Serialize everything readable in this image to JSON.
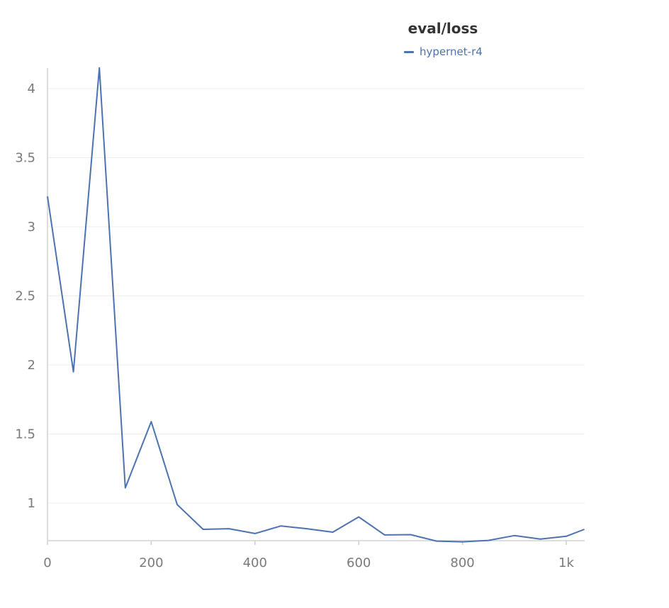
{
  "chart_data": {
    "type": "line",
    "title": "eval/loss",
    "xlabel": "",
    "ylabel": "",
    "xlim": [
      0,
      1035
    ],
    "ylim": [
      0.73,
      4.15
    ],
    "x_ticks": [
      {
        "value": 0,
        "label": "0"
      },
      {
        "value": 200,
        "label": "200"
      },
      {
        "value": 400,
        "label": "400"
      },
      {
        "value": 600,
        "label": "600"
      },
      {
        "value": 800,
        "label": "800"
      },
      {
        "value": 1000,
        "label": "1k"
      }
    ],
    "y_ticks": [
      {
        "value": 1,
        "label": "1"
      },
      {
        "value": 1.5,
        "label": "1.5"
      },
      {
        "value": 2,
        "label": "2"
      },
      {
        "value": 2.5,
        "label": "2.5"
      },
      {
        "value": 3,
        "label": "3"
      },
      {
        "value": 3.5,
        "label": "3.5"
      },
      {
        "value": 4,
        "label": "4"
      }
    ],
    "grid": true,
    "legend_position": "top-center",
    "series": [
      {
        "name": "hypernet-r4",
        "color": "#4c72b0",
        "x": [
          0,
          50,
          100,
          150,
          200,
          250,
          300,
          350,
          400,
          450,
          500,
          550,
          600,
          650,
          700,
          750,
          800,
          850,
          900,
          950,
          1000,
          1035
        ],
        "y": [
          3.22,
          1.95,
          4.15,
          1.11,
          1.59,
          0.99,
          0.81,
          0.815,
          0.78,
          0.835,
          0.815,
          0.79,
          0.9,
          0.77,
          0.772,
          0.725,
          0.72,
          0.73,
          0.765,
          0.74,
          0.76,
          0.81
        ]
      }
    ]
  }
}
